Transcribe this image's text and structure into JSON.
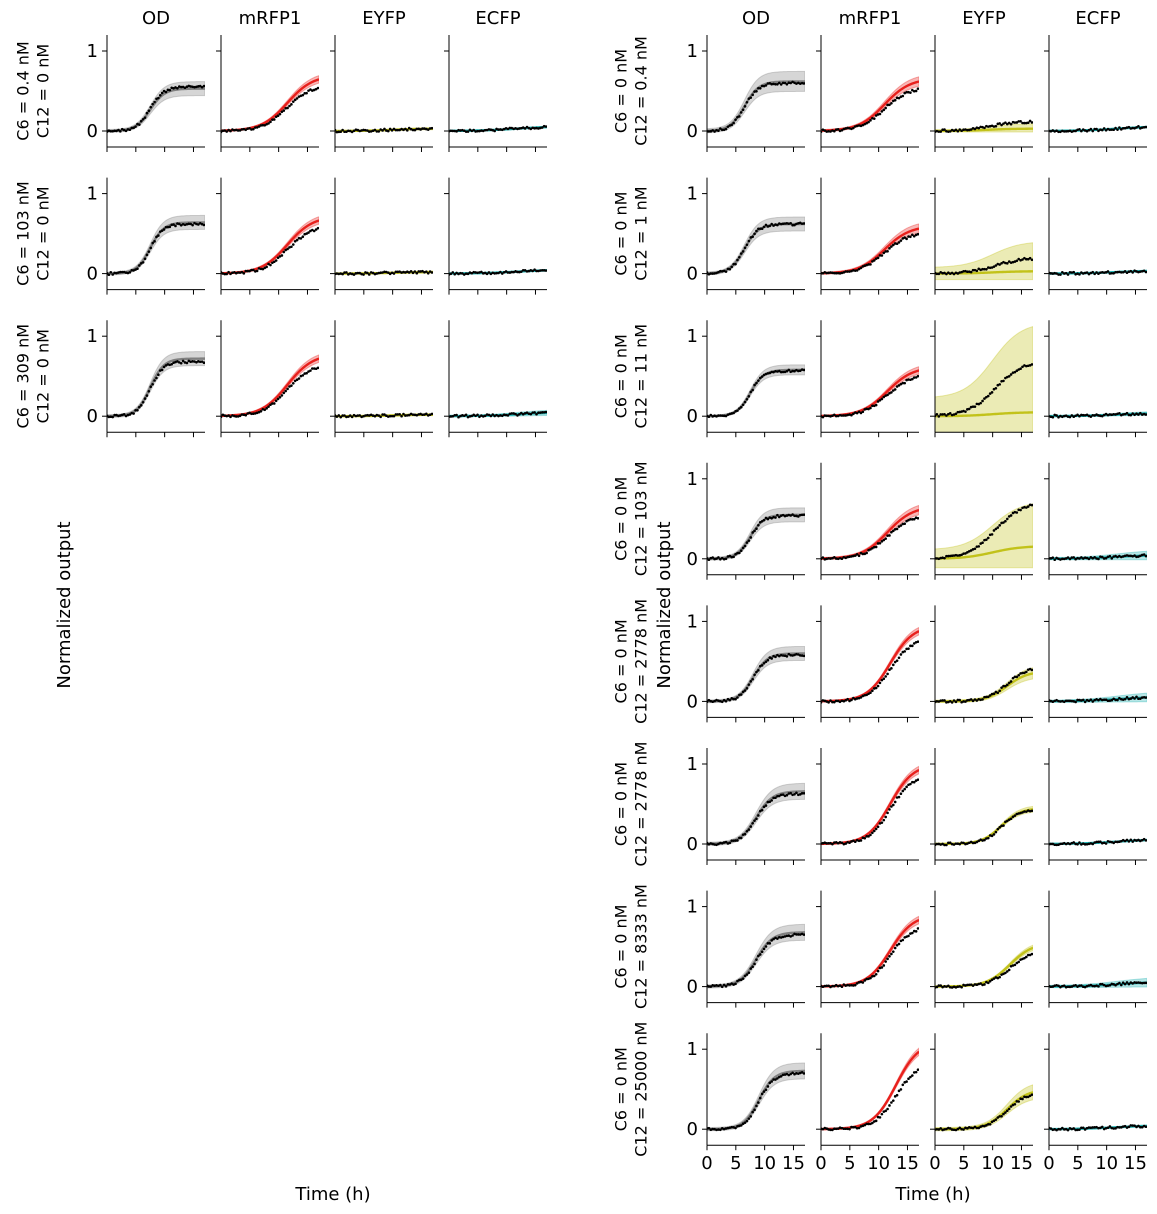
{
  "chart_data": {
    "type": "line",
    "columns": [
      "OD",
      "mRFP1",
      "EYFP",
      "ECFP"
    ],
    "xlabel": "Time (h)",
    "ylabel": "Normalized output",
    "xlim": [
      0,
      17
    ],
    "ylim": [
      -0.2,
      1.2
    ],
    "xticks": [
      0,
      5,
      10,
      15
    ],
    "yticks": [
      0,
      1
    ],
    "colors": {
      "OD": "#808080",
      "mRFP1": "#e8201c",
      "EYFP": "#c2c21a",
      "ECFP": "#1fb2b2",
      "data": "#000000"
    },
    "panels": [
      {
        "id": "left",
        "xlabel": "Time (h)",
        "ylabel": "Normalized output",
        "rows": [
          {
            "label": [
              "C6 = 0.4 nM",
              "C12 = 0 nM"
            ],
            "OD": {
              "final": 0.53,
              "mid": 7.5,
              "k": 0.8,
              "data_final": 0.55,
              "band": 0.07
            },
            "mRFP1": {
              "final": 0.7,
              "mid": 11.5,
              "k": 0.45,
              "data_final": 0.58,
              "band": 0.04
            },
            "EYFP": {
              "final": 0.03,
              "mid": 10,
              "k": 0.4,
              "data_final": 0.03,
              "band": 0.01
            },
            "ECFP": {
              "final": 0.06,
              "mid": 12,
              "k": 0.3,
              "data_final": 0.06,
              "band": 0.01
            }
          },
          {
            "label": [
              "C6 = 103 nM",
              "C12 = 0 nM"
            ],
            "OD": {
              "final": 0.64,
              "mid": 7.5,
              "k": 0.85,
              "data_final": 0.62,
              "band": 0.07
            },
            "mRFP1": {
              "final": 0.72,
              "mid": 11.5,
              "k": 0.45,
              "data_final": 0.6,
              "band": 0.04
            },
            "EYFP": {
              "final": 0.02,
              "mid": 10,
              "k": 0.4,
              "data_final": 0.02,
              "band": 0.01
            },
            "ECFP": {
              "final": 0.05,
              "mid": 12,
              "k": 0.3,
              "data_final": 0.05,
              "band": 0.01
            }
          },
          {
            "label": [
              "C6 = 309 nM",
              "C12 = 0 nM"
            ],
            "OD": {
              "final": 0.72,
              "mid": 7.5,
              "k": 0.85,
              "data_final": 0.68,
              "band": 0.07
            },
            "mRFP1": {
              "final": 0.78,
              "mid": 11.5,
              "k": 0.45,
              "data_final": 0.66,
              "band": 0.04
            },
            "EYFP": {
              "final": 0.02,
              "mid": 10,
              "k": 0.4,
              "data_final": 0.02,
              "band": 0.01
            },
            "ECFP": {
              "final": 0.05,
              "mid": 12,
              "k": 0.3,
              "data_final": 0.05,
              "band": 0.03
            }
          }
        ]
      },
      {
        "id": "right",
        "xlabel": "Time (h)",
        "ylabel": "Normalized output",
        "rows": [
          {
            "label": [
              "C6 = 0 nM",
              "C12 = 0.4 nM"
            ],
            "OD": {
              "final": 0.62,
              "mid": 6.5,
              "k": 0.8,
              "data_final": 0.6,
              "band": 0.1
            },
            "mRFP1": {
              "final": 0.66,
              "mid": 11,
              "k": 0.45,
              "data_final": 0.55,
              "band": 0.05
            },
            "EYFP": {
              "final": 0.03,
              "mid": 9,
              "k": 0.4,
              "data_final": 0.12,
              "band": 0.05
            },
            "ECFP": {
              "final": 0.06,
              "mid": 12,
              "k": 0.3,
              "data_final": 0.06,
              "band": 0.01
            }
          },
          {
            "label": [
              "C6 = 0 nM",
              "C12 = 1 nM"
            ],
            "OD": {
              "final": 0.62,
              "mid": 6.5,
              "k": 0.8,
              "data_final": 0.62,
              "band": 0.07
            },
            "mRFP1": {
              "final": 0.6,
              "mid": 11,
              "k": 0.45,
              "data_final": 0.52,
              "band": 0.05
            },
            "EYFP": {
              "final": 0.03,
              "mid": 10,
              "k": 0.4,
              "data_final": 0.2,
              "band": 0.3
            },
            "ECFP": {
              "final": 0.04,
              "mid": 12,
              "k": 0.3,
              "data_final": 0.04,
              "band": 0.01
            }
          },
          {
            "label": [
              "C6 = 0 nM",
              "C12 = 11 nM"
            ],
            "OD": {
              "final": 0.58,
              "mid": 7.5,
              "k": 0.85,
              "data_final": 0.57,
              "band": 0.05
            },
            "mRFP1": {
              "final": 0.62,
              "mid": 11.5,
              "k": 0.45,
              "data_final": 0.53,
              "band": 0.04
            },
            "EYFP": {
              "final": 0.05,
              "mid": 10,
              "k": 0.4,
              "data_final": 0.7,
              "band": 0.9
            },
            "ECFP": {
              "final": 0.04,
              "mid": 12,
              "k": 0.3,
              "data_final": 0.04,
              "band": 0.02
            }
          },
          {
            "label": [
              "C6 = 0 nM",
              "C12 = 103 nM"
            ],
            "OD": {
              "final": 0.55,
              "mid": 7.5,
              "k": 0.85,
              "data_final": 0.54,
              "band": 0.07
            },
            "mRFP1": {
              "final": 0.66,
              "mid": 11.5,
              "k": 0.45,
              "data_final": 0.56,
              "band": 0.05
            },
            "EYFP": {
              "final": 0.16,
              "mid": 10,
              "k": 0.4,
              "data_final": 0.72,
              "band": 0.45
            },
            "ECFP": {
              "final": 0.05,
              "mid": 12,
              "k": 0.3,
              "data_final": 0.05,
              "band": 0.05
            }
          },
          {
            "label": [
              "C6 = 0 nM",
              "C12 = 2778 nM"
            ],
            "OD": {
              "final": 0.6,
              "mid": 8,
              "k": 0.8,
              "data_final": 0.58,
              "band": 0.07
            },
            "mRFP1": {
              "final": 0.95,
              "mid": 12,
              "k": 0.5,
              "data_final": 0.8,
              "band": 0.04
            },
            "EYFP": {
              "final": 0.38,
              "mid": 12.5,
              "k": 0.55,
              "data_final": 0.43,
              "band": 0.06
            },
            "ECFP": {
              "final": 0.06,
              "mid": 12,
              "k": 0.3,
              "data_final": 0.06,
              "band": 0.05
            }
          },
          {
            "label": [
              "C6 = 0 nM",
              "C12 = 2778 nM"
            ],
            "OD": {
              "final": 0.66,
              "mid": 8.5,
              "k": 0.7,
              "data_final": 0.63,
              "band": 0.08
            },
            "mRFP1": {
              "final": 1.0,
              "mid": 12,
              "k": 0.5,
              "data_final": 0.87,
              "band": 0.04
            },
            "EYFP": {
              "final": 0.45,
              "mid": 11.5,
              "k": 0.6,
              "data_final": 0.43,
              "band": 0.03
            },
            "ECFP": {
              "final": 0.06,
              "mid": 12,
              "k": 0.3,
              "data_final": 0.06,
              "band": 0.01
            }
          },
          {
            "label": [
              "C6 = 0 nM",
              "C12 = 8333 nM"
            ],
            "OD": {
              "final": 0.68,
              "mid": 8.5,
              "k": 0.7,
              "data_final": 0.65,
              "band": 0.08
            },
            "mRFP1": {
              "final": 0.9,
              "mid": 12,
              "k": 0.5,
              "data_final": 0.77,
              "band": 0.04
            },
            "EYFP": {
              "final": 0.55,
              "mid": 13,
              "k": 0.5,
              "data_final": 0.46,
              "band": 0.03
            },
            "ECFP": {
              "final": 0.06,
              "mid": 12,
              "k": 0.3,
              "data_final": 0.06,
              "band": 0.05
            }
          },
          {
            "label": [
              "C6 = 0 nM",
              "C12 = 25000 nM"
            ],
            "OD": {
              "final": 0.73,
              "mid": 9,
              "k": 0.75,
              "data_final": 0.7,
              "band": 0.08
            },
            "mRFP1": {
              "final": 1.1,
              "mid": 13,
              "k": 0.5,
              "data_final": 0.83,
              "band": 0.04
            },
            "EYFP": {
              "final": 0.5,
              "mid": 12.5,
              "k": 0.55,
              "data_final": 0.47,
              "band": 0.08
            },
            "ECFP": {
              "final": 0.05,
              "mid": 12,
              "k": 0.3,
              "data_final": 0.05,
              "band": 0.01
            }
          }
        ]
      }
    ]
  }
}
